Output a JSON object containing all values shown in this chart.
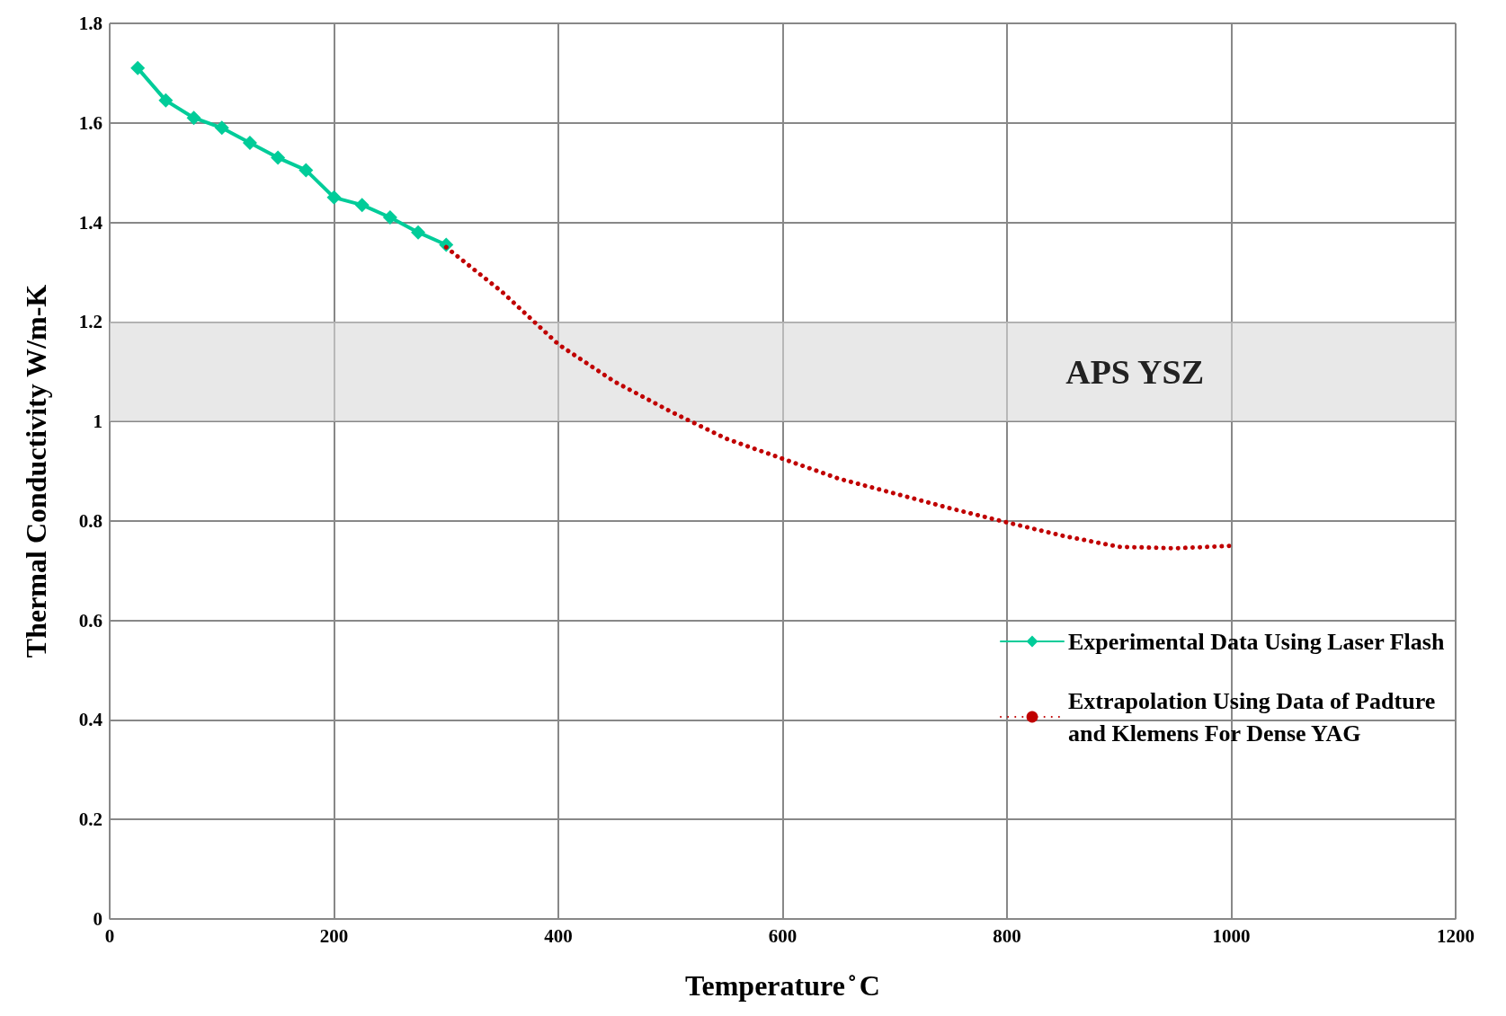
{
  "chart_data": {
    "type": "line",
    "xlabel": "Temperature ̊ C",
    "ylabel": "Thermal Conductivity W/m-K",
    "xlim": [
      0,
      1200
    ],
    "xticks": [
      0,
      200,
      400,
      600,
      800,
      1000,
      1200
    ],
    "ylim": [
      0,
      1.8
    ],
    "yticks": [
      0,
      0.2,
      0.4,
      0.6,
      0.8,
      1,
      1.2,
      1.4,
      1.6,
      1.8
    ],
    "grid": true,
    "legend": "bottom right",
    "series": [
      {
        "name": "Experimental Data Using Laser Flash",
        "color": "#00cc99",
        "marker": "diamond",
        "line_style": "solid",
        "x": [
          25,
          50,
          75,
          100,
          125,
          150,
          175,
          200,
          225,
          250,
          275,
          300
        ],
        "values": [
          1.71,
          1.645,
          1.61,
          1.59,
          1.56,
          1.53,
          1.505,
          1.45,
          1.435,
          1.41,
          1.38,
          1.355
        ]
      },
      {
        "name": "Extrapolation Using Data of Padture and Klemens For Dense YAG",
        "color": "#c00000",
        "marker": "none",
        "line_style": "dotted",
        "x": [
          300,
          350,
          400,
          450,
          500,
          550,
          600,
          650,
          700,
          750,
          800,
          850,
          900,
          950,
          1000
        ],
        "values": [
          1.35,
          1.26,
          1.155,
          1.08,
          1.02,
          0.965,
          0.925,
          0.885,
          0.855,
          0.825,
          0.797,
          0.77,
          0.748,
          0.745,
          0.75
        ]
      }
    ],
    "bands": [
      {
        "axis": "y",
        "from": 1,
        "to": 1.2,
        "label": "APS YSZ",
        "color": "#d9d9d9"
      }
    ]
  }
}
